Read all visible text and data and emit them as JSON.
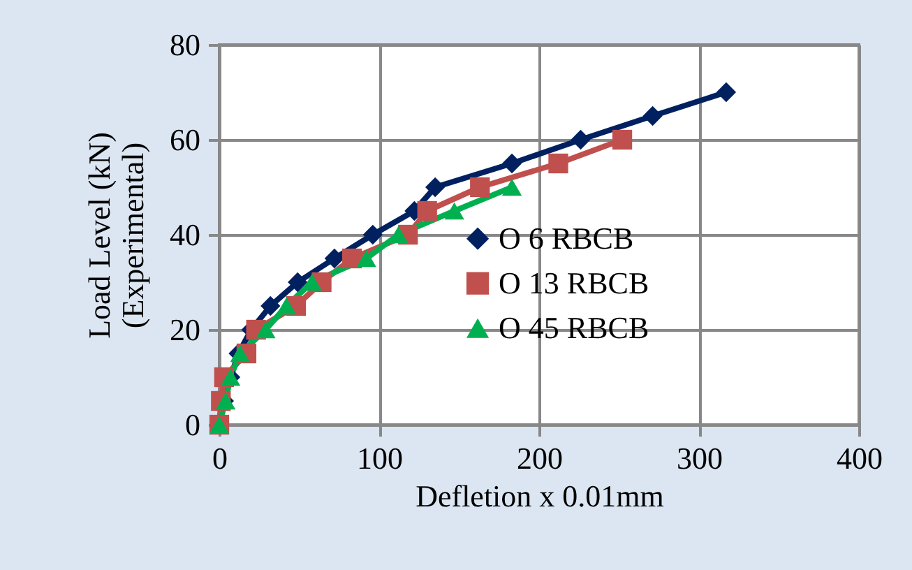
{
  "chart_data": {
    "type": "line",
    "xlabel": "Defletion x 0.01mm",
    "ylabel": "Load Level (kN)\n(Experimental)",
    "xlim": [
      0,
      400
    ],
    "xticks": [
      0,
      100,
      200,
      300,
      400
    ],
    "ylim": [
      0,
      80
    ],
    "yticks": [
      0,
      20,
      40,
      60,
      80
    ],
    "grid": true,
    "legend": "right",
    "line_style": "solid",
    "series": [
      {
        "name": "O 6 RBCB",
        "color": "#002060",
        "marker": "diamond",
        "x": [
          0,
          3,
          7,
          12,
          20,
          32,
          49,
          72,
          96,
          122,
          135,
          183,
          226,
          271,
          317
        ],
        "values": [
          0,
          5,
          10,
          15,
          20,
          25,
          30,
          35,
          40,
          45,
          50,
          55,
          60,
          65,
          70
        ]
      },
      {
        "name": "O 13 RBCB",
        "color": "#c0504d",
        "marker": "square",
        "x": [
          0,
          1,
          3,
          17,
          23,
          48,
          64,
          83,
          118,
          130,
          163,
          212,
          252
        ],
        "values": [
          0,
          5,
          10,
          15,
          20,
          25,
          30,
          35,
          40,
          45,
          50,
          55,
          60
        ]
      },
      {
        "name": "O 45 RBCB",
        "color": "#00b050",
        "marker": "triangle",
        "x": [
          0,
          4,
          7,
          13,
          29,
          42,
          58,
          92,
          112,
          147,
          183
        ],
        "values": [
          0,
          5,
          10,
          15,
          20,
          25,
          30,
          35,
          40,
          45,
          50
        ]
      }
    ]
  }
}
